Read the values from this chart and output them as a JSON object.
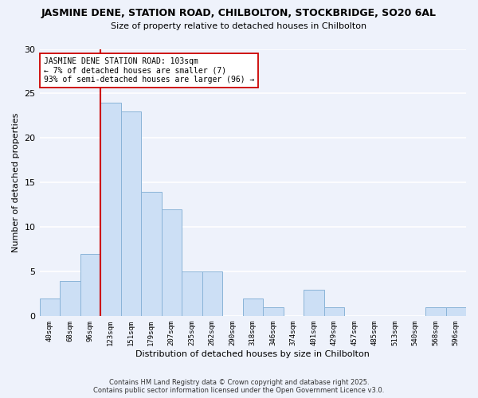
{
  "title": "JASMINE DENE, STATION ROAD, CHILBOLTON, STOCKBRIDGE, SO20 6AL",
  "subtitle": "Size of property relative to detached houses in Chilbolton",
  "xlabel": "Distribution of detached houses by size in Chilbolton",
  "ylabel": "Number of detached properties",
  "bin_labels": [
    "40sqm",
    "68sqm",
    "96sqm",
    "123sqm",
    "151sqm",
    "179sqm",
    "207sqm",
    "235sqm",
    "262sqm",
    "290sqm",
    "318sqm",
    "346sqm",
    "374sqm",
    "401sqm",
    "429sqm",
    "457sqm",
    "485sqm",
    "513sqm",
    "540sqm",
    "568sqm",
    "596sqm"
  ],
  "bar_heights": [
    2,
    4,
    7,
    24,
    23,
    14,
    12,
    5,
    5,
    0,
    2,
    1,
    0,
    3,
    1,
    0,
    0,
    0,
    0,
    1,
    1
  ],
  "bar_color": "#ccdff5",
  "bar_edge_color": "#8ab4d8",
  "background_color": "#eef2fb",
  "grid_color": "#ffffff",
  "vline_x_index": 2,
  "vline_color": "#cc0000",
  "annotation_title": "JASMINE DENE STATION ROAD: 103sqm",
  "annotation_line1": "← 7% of detached houses are smaller (7)",
  "annotation_line2": "93% of semi-detached houses are larger (96) →",
  "annotation_box_color": "#ffffff",
  "annotation_box_edge": "#cc0000",
  "ylim": [
    0,
    30
  ],
  "yticks": [
    0,
    5,
    10,
    15,
    20,
    25,
    30
  ],
  "footer1": "Contains HM Land Registry data © Crown copyright and database right 2025.",
  "footer2": "Contains public sector information licensed under the Open Government Licence v3.0."
}
